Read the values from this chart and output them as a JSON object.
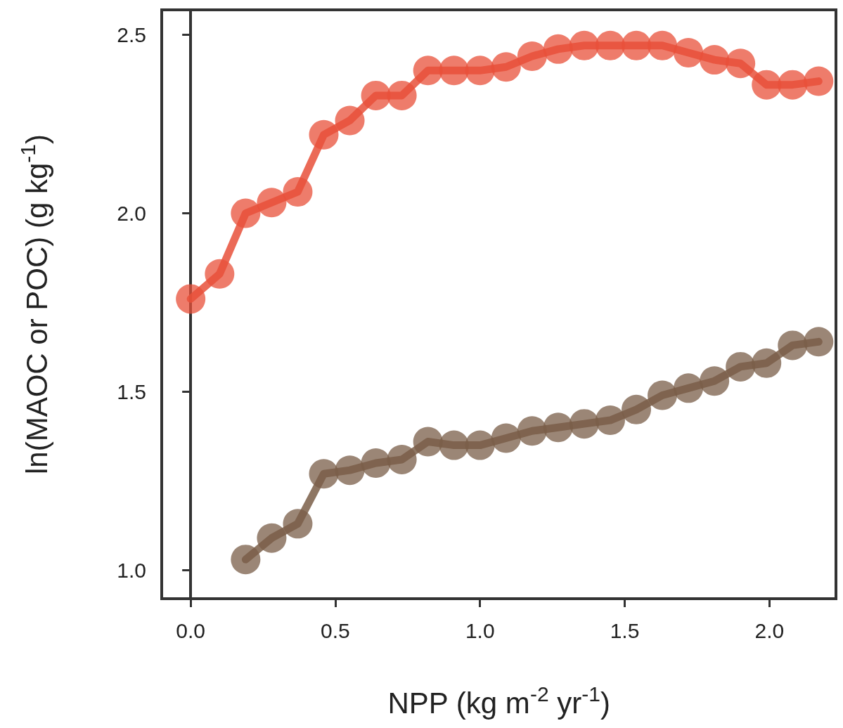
{
  "chart_data": {
    "type": "line",
    "xlabel": "NPP (kg m$^{-2}$ yr$^{-1}$)",
    "ylabel": "ln(MAOC or POC) (g kg$^{-1}$)",
    "xlim": [
      -0.1,
      2.23
    ],
    "ylim": [
      0.92,
      2.57
    ],
    "xticks": [
      {
        "value": 0,
        "label": "0.0"
      },
      {
        "value": 0.5,
        "label": "0.5"
      },
      {
        "value": 1,
        "label": "1.0"
      },
      {
        "value": 1.5,
        "label": "1.5"
      },
      {
        "value": 2,
        "label": "2.0"
      }
    ],
    "yticks": [
      {
        "value": 1,
        "label": "1.0"
      },
      {
        "value": 1.5,
        "label": "1.5"
      },
      {
        "value": 2,
        "label": "2.0"
      },
      {
        "value": 2.5,
        "label": "2.5"
      }
    ],
    "marker": "circle",
    "line_style": "solid",
    "series": [
      {
        "color": "#e8503a",
        "x": [
          0.0,
          0.1,
          0.19,
          0.28,
          0.37,
          0.46,
          0.55,
          0.64,
          0.73,
          0.82,
          0.91,
          1.0,
          1.09,
          1.18,
          1.27,
          1.36,
          1.45,
          1.54,
          1.63,
          1.72,
          1.81,
          1.9,
          1.99,
          2.08,
          2.17
        ],
        "values": [
          1.76,
          1.83,
          2.0,
          2.03,
          2.06,
          2.22,
          2.26,
          2.33,
          2.33,
          2.4,
          2.4,
          2.4,
          2.41,
          2.44,
          2.46,
          2.47,
          2.47,
          2.47,
          2.47,
          2.45,
          2.43,
          2.42,
          2.36,
          2.36,
          2.37
        ]
      },
      {
        "color": "#7a5e48",
        "x": [
          0.19,
          0.28,
          0.37,
          0.46,
          0.55,
          0.64,
          0.73,
          0.82,
          0.91,
          1.0,
          1.09,
          1.18,
          1.27,
          1.36,
          1.45,
          1.54,
          1.63,
          1.72,
          1.81,
          1.9,
          1.99,
          2.08,
          2.17
        ],
        "values": [
          1.03,
          1.09,
          1.13,
          1.27,
          1.28,
          1.3,
          1.31,
          1.36,
          1.35,
          1.35,
          1.37,
          1.39,
          1.4,
          1.41,
          1.42,
          1.45,
          1.49,
          1.51,
          1.53,
          1.57,
          1.58,
          1.63,
          1.64
        ]
      }
    ]
  }
}
